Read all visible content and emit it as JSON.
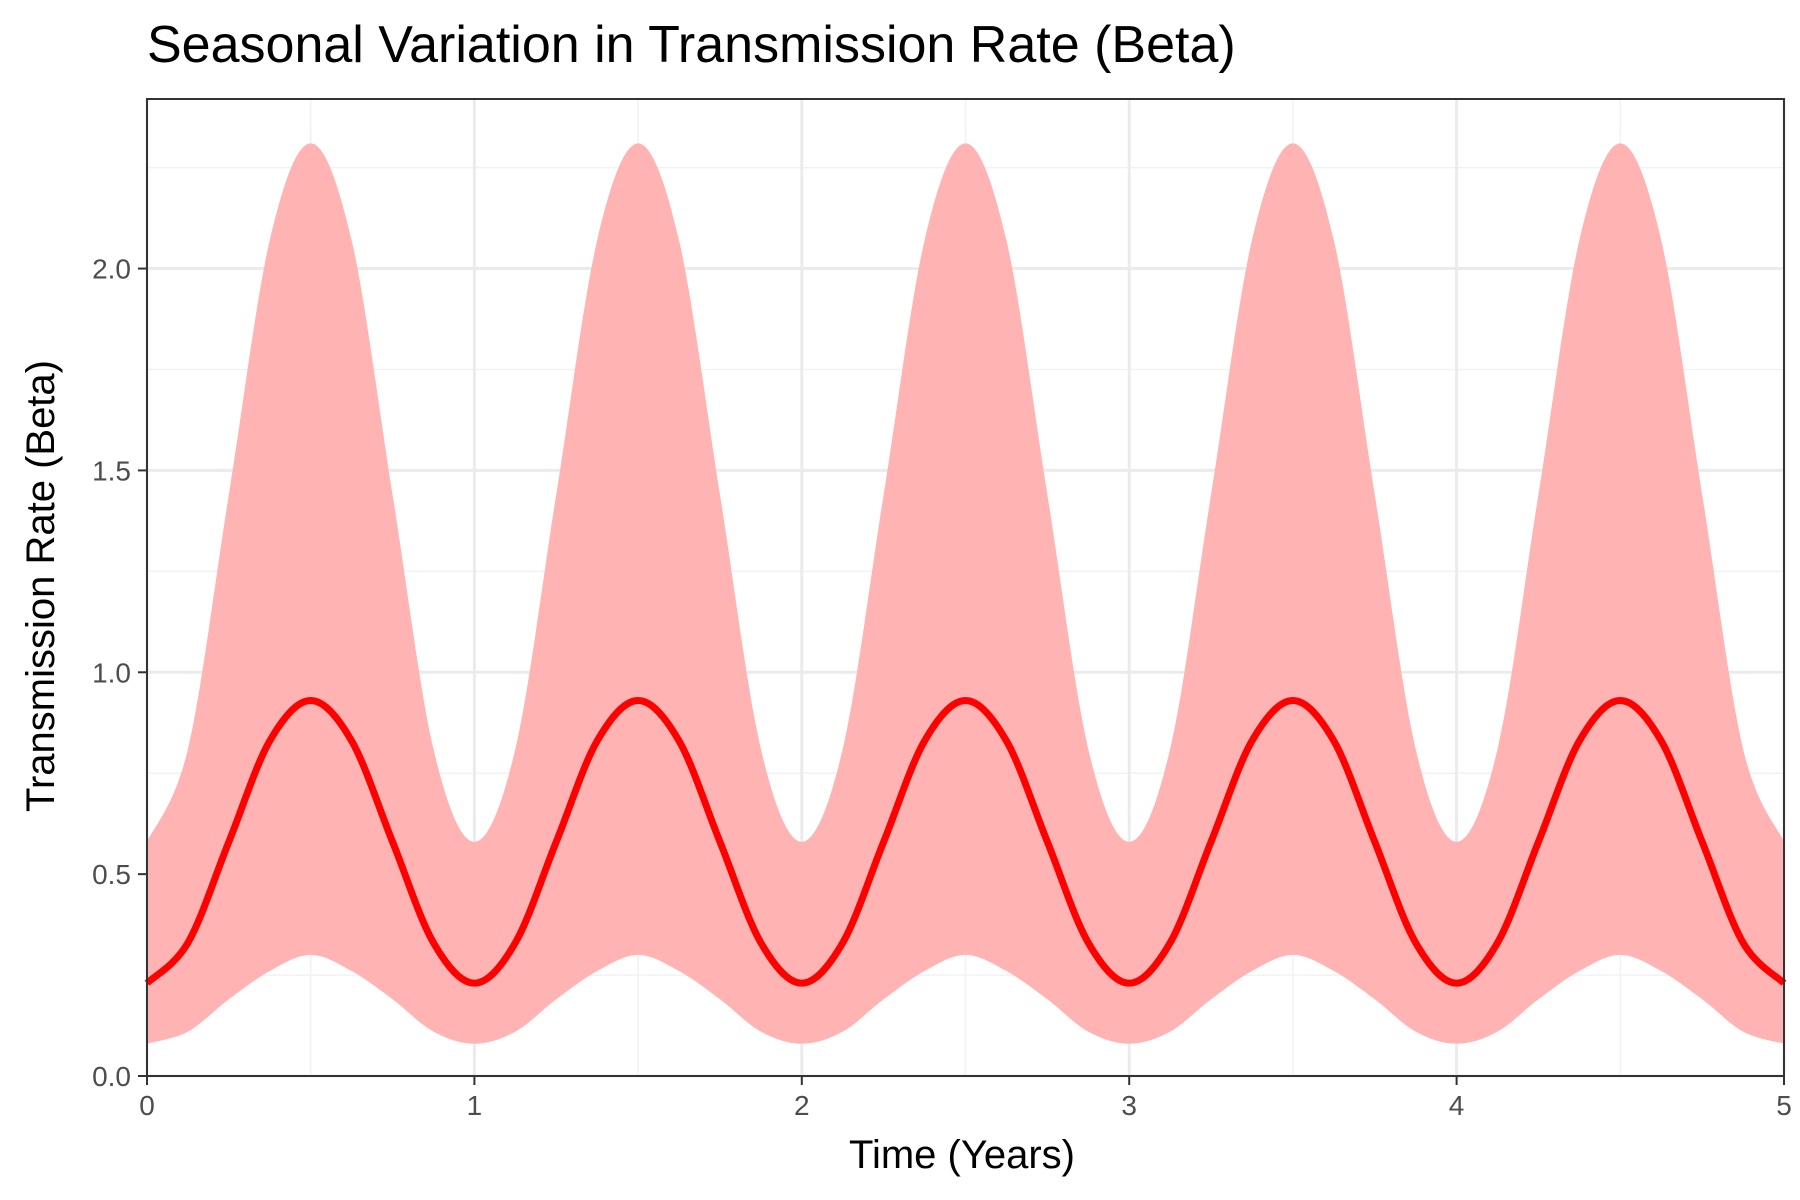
{
  "chart_data": {
    "type": "area",
    "title": "Seasonal Variation in Transmission Rate (Beta)",
    "xlabel": "Time (Years)",
    "ylabel": "Transmission Rate (Beta)",
    "xlim": [
      0,
      5
    ],
    "ylim": [
      0,
      2.42
    ],
    "x_ticks": [
      0,
      1,
      2,
      3,
      4,
      5
    ],
    "x_tick_labels": [
      "0",
      "1",
      "2",
      "3",
      "4",
      "5"
    ],
    "y_ticks": [
      0,
      0.5,
      1,
      1.5,
      2
    ],
    "y_tick_labels": [
      "0.0",
      "0.5",
      "1.0",
      "1.5",
      "2.0"
    ],
    "grid": true,
    "legend": "none",
    "series": [
      {
        "kind": "line",
        "color": "#ff0000",
        "x": [
          0,
          0.125,
          0.25,
          0.375,
          0.5,
          0.625,
          0.75,
          0.875,
          1,
          1.125,
          1.25,
          1.375,
          1.5,
          1.625,
          1.75,
          1.875,
          2,
          2.125,
          2.25,
          2.375,
          2.5,
          2.625,
          2.75,
          2.875,
          3,
          3.125,
          3.25,
          3.375,
          3.5,
          3.625,
          3.75,
          3.875,
          4,
          4.125,
          4.25,
          4.375,
          4.5,
          4.625,
          4.75,
          4.875,
          5
        ],
        "y": [
          0.23,
          0.33,
          0.58,
          0.83,
          0.93,
          0.83,
          0.58,
          0.33,
          0.23,
          0.33,
          0.58,
          0.83,
          0.93,
          0.83,
          0.58,
          0.33,
          0.23,
          0.33,
          0.58,
          0.83,
          0.93,
          0.83,
          0.58,
          0.33,
          0.23,
          0.33,
          0.58,
          0.83,
          0.93,
          0.83,
          0.58,
          0.33,
          0.23,
          0.33,
          0.58,
          0.83,
          0.93,
          0.83,
          0.58,
          0.33,
          0.23
        ]
      },
      {
        "kind": "ribbon",
        "color": "#ffb3b3",
        "x": [
          0,
          0.125,
          0.25,
          0.375,
          0.5,
          0.625,
          0.75,
          0.875,
          1,
          1.125,
          1.25,
          1.375,
          1.5,
          1.625,
          1.75,
          1.875,
          2,
          2.125,
          2.25,
          2.375,
          2.5,
          2.625,
          2.75,
          2.875,
          3,
          3.125,
          3.25,
          3.375,
          3.5,
          3.625,
          3.75,
          3.875,
          4,
          4.125,
          4.25,
          4.375,
          4.5,
          4.625,
          4.75,
          4.875,
          5
        ],
        "lower": [
          0.08,
          0.11,
          0.19,
          0.26,
          0.3,
          0.26,
          0.19,
          0.11,
          0.08,
          0.11,
          0.19,
          0.26,
          0.3,
          0.26,
          0.19,
          0.11,
          0.08,
          0.11,
          0.19,
          0.26,
          0.3,
          0.26,
          0.19,
          0.11,
          0.08,
          0.11,
          0.19,
          0.26,
          0.3,
          0.26,
          0.19,
          0.11,
          0.08,
          0.11,
          0.19,
          0.26,
          0.3,
          0.26,
          0.19,
          0.11,
          0.08
        ],
        "upper": [
          0.58,
          0.81,
          1.44,
          2.07,
          2.31,
          2.07,
          1.44,
          0.81,
          0.58,
          0.81,
          1.44,
          2.07,
          2.31,
          2.07,
          1.44,
          0.81,
          0.58,
          0.81,
          1.44,
          2.07,
          2.31,
          2.07,
          1.44,
          0.81,
          0.58,
          0.81,
          1.44,
          2.07,
          2.31,
          2.07,
          1.44,
          0.81,
          0.58,
          0.81,
          1.44,
          2.07,
          2.31,
          2.07,
          1.44,
          0.81,
          0.58
        ]
      }
    ]
  }
}
